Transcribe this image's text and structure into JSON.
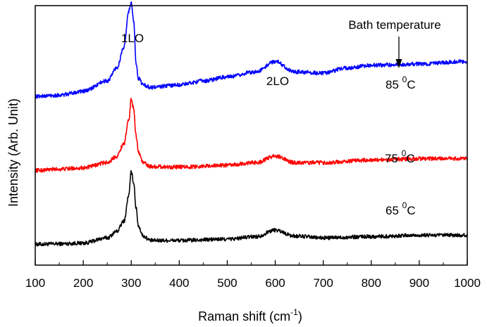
{
  "chart_data": {
    "type": "line",
    "xlabel": "Raman shift (cm",
    "xlabel_sup": "-1",
    "xlabel_end": ")",
    "ylabel": "Intensity (Arb. Unit)",
    "xlim": [
      100,
      1000
    ],
    "ylim": [
      0,
      10
    ],
    "x_ticks": [
      100,
      200,
      300,
      400,
      500,
      600,
      700,
      800,
      900,
      1000
    ],
    "y_ticks_shown": false,
    "grid": false,
    "series": [
      {
        "name": "65",
        "color": "#000000",
        "x": [
          100,
          150,
          200,
          250,
          270,
          285,
          295,
          300,
          305,
          310,
          315,
          325,
          340,
          400,
          500,
          560,
          600,
          640,
          700,
          800,
          900,
          1000
        ],
        "y": [
          0.8,
          0.82,
          0.85,
          1.05,
          1.3,
          1.7,
          2.7,
          3.6,
          3.2,
          2.2,
          1.5,
          1.12,
          0.95,
          0.95,
          1.0,
          1.1,
          1.35,
          1.12,
          1.05,
          1.1,
          1.15,
          1.15
        ]
      },
      {
        "name": "75",
        "color": "#ff0000",
        "x": [
          100,
          150,
          200,
          250,
          270,
          285,
          295,
          300,
          305,
          310,
          315,
          325,
          340,
          400,
          500,
          560,
          600,
          640,
          700,
          800,
          900,
          1000
        ],
        "y": [
          3.65,
          3.7,
          3.75,
          3.95,
          4.2,
          4.7,
          5.6,
          6.4,
          6.05,
          5.0,
          4.35,
          3.95,
          3.8,
          3.78,
          3.85,
          3.95,
          4.2,
          3.95,
          3.95,
          4.05,
          4.1,
          4.1
        ]
      },
      {
        "name": "85",
        "color": "#0000ff",
        "x": [
          100,
          150,
          200,
          250,
          270,
          285,
          295,
          300,
          305,
          310,
          315,
          325,
          340,
          400,
          450,
          500,
          560,
          600,
          640,
          700,
          750,
          800,
          900,
          1000
        ],
        "y": [
          6.5,
          6.55,
          6.7,
          7.1,
          7.6,
          8.4,
          9.8,
          10.1,
          9.4,
          7.8,
          7.2,
          6.95,
          6.85,
          6.95,
          7.1,
          7.25,
          7.45,
          7.85,
          7.45,
          7.4,
          7.6,
          7.7,
          7.75,
          7.85
        ]
      }
    ],
    "annotations": {
      "peak1": "1LO",
      "peak2": "2LO",
      "header": "Bath temperature",
      "temps": [
        {
          "value": "85",
          "sup": "0",
          "unit": "C"
        },
        {
          "value": "75",
          "sup": "0",
          "unit": "C"
        },
        {
          "value": "65",
          "sup": "0",
          "unit": "C"
        }
      ]
    }
  }
}
